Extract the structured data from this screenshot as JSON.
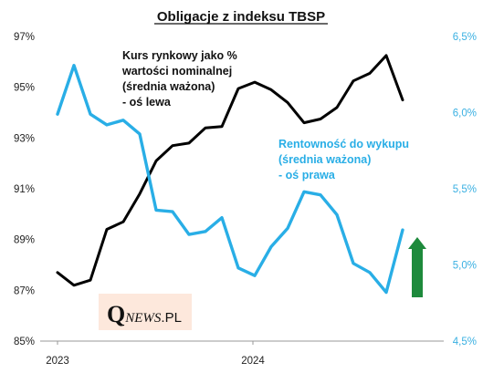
{
  "chart_data": {
    "type": "line",
    "title": "Obligacje z indeksu TBSP",
    "x_tick_labels": [
      "2023",
      "2024"
    ],
    "left_axis": {
      "ticks": [
        "85%",
        "87%",
        "89%",
        "91%",
        "93%",
        "95%",
        "97%"
      ],
      "tick_values": [
        85,
        87,
        89,
        91,
        93,
        95,
        97
      ],
      "ylim": [
        85,
        97
      ]
    },
    "right_axis": {
      "ticks": [
        "4,5%",
        "5,0%",
        "5,5%",
        "6,0%",
        "6,5%"
      ],
      "tick_values": [
        4.5,
        5.0,
        5.5,
        6.0,
        6.5
      ],
      "ylim": [
        4.5,
        6.5
      ]
    },
    "series": [
      {
        "label_lines": [
          "Kurs rynkowy jako %",
          "wartości nominalnej",
          "(średnia ważona)",
          "- oś lewa"
        ],
        "axis": "left",
        "color": "#000000",
        "values": [
          87.7,
          87.2,
          87.4,
          89.4,
          89.7,
          90.8,
          92.1,
          92.7,
          92.8,
          93.4,
          93.45,
          94.95,
          95.2,
          94.9,
          94.4,
          93.6,
          93.75,
          94.2,
          95.25,
          95.55,
          96.25,
          94.5
        ]
      },
      {
        "label_lines": [
          "Rentowność do wykupu",
          "(średnia ważona)",
          "- oś prawa"
        ],
        "axis": "right",
        "color": "#29aee6",
        "values": [
          5.99,
          6.31,
          5.99,
          5.92,
          5.95,
          5.86,
          5.36,
          5.35,
          5.2,
          5.22,
          5.31,
          4.98,
          4.93,
          5.12,
          5.24,
          5.48,
          5.46,
          5.33,
          5.01,
          4.95,
          4.82,
          5.23
        ]
      }
    ],
    "arrow_color": "#1e8a3c",
    "grid": false,
    "legend": "inline annotations"
  },
  "logo": {
    "q": "Q",
    "news": "NEWS",
    "pl": ".PL",
    "background": "#fde8dc"
  }
}
